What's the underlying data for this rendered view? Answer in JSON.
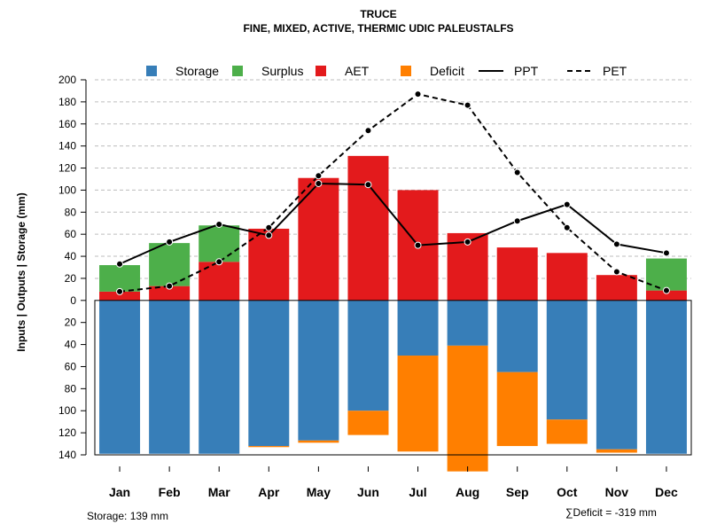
{
  "chart_data": {
    "type": "bar",
    "title": "TRUCE",
    "subtitle": "FINE, MIXED, ACTIVE, THERMIC UDIC PALEUSTALFS",
    "ylabel": "Inputs | Outputs | Storage     (mm)",
    "ylim": [
      -140,
      200
    ],
    "yticks": [
      200,
      180,
      160,
      140,
      120,
      100,
      80,
      60,
      40,
      20,
      0,
      -20,
      -40,
      -60,
      -80,
      -100,
      -120,
      -140
    ],
    "ytick_labels": [
      "200",
      "180",
      "160",
      "140",
      "120",
      "100",
      "80",
      "60",
      "40",
      "20",
      "0",
      "20",
      "40",
      "60",
      "80",
      "100",
      "120",
      "140"
    ],
    "categories": [
      "Jan",
      "Feb",
      "Mar",
      "Apr",
      "May",
      "Jun",
      "Jul",
      "Aug",
      "Sep",
      "Oct",
      "Nov",
      "Dec"
    ],
    "series": [
      {
        "name": "AET",
        "color": "#e31a1c",
        "kind": "bar-up",
        "values": [
          8,
          13,
          35,
          65,
          111,
          131,
          100,
          61,
          48,
          43,
          23,
          9
        ]
      },
      {
        "name": "Surplus",
        "color": "#4daf4a",
        "kind": "bar-up-stacked",
        "values": [
          24,
          39,
          33,
          0,
          0,
          0,
          0,
          0,
          0,
          0,
          0,
          29
        ]
      },
      {
        "name": "Storage",
        "color": "#377eb8",
        "kind": "bar-down",
        "values": [
          139,
          139,
          139,
          132,
          127,
          100,
          50,
          41,
          65,
          108,
          135,
          139
        ]
      },
      {
        "name": "Deficit",
        "color": "#ff7f00",
        "kind": "bar-down-stacked",
        "values": [
          0,
          0,
          0,
          1,
          2,
          22,
          87,
          114,
          67,
          22,
          3,
          0
        ]
      },
      {
        "name": "PPT",
        "color": "#000000",
        "kind": "line-solid",
        "values": [
          33,
          53,
          69,
          59,
          106,
          105,
          50,
          53,
          72,
          87,
          51,
          43
        ]
      },
      {
        "name": "PET",
        "color": "#000000",
        "kind": "line-dashed",
        "values": [
          8,
          13,
          35,
          66,
          113,
          154,
          187,
          177,
          116,
          66,
          26,
          9
        ]
      }
    ],
    "legend": {
      "position": "top",
      "items": [
        {
          "label": "Storage",
          "color": "#377eb8",
          "kind": "box"
        },
        {
          "label": "Surplus",
          "color": "#4daf4a",
          "kind": "box"
        },
        {
          "label": "AET",
          "color": "#e31a1c",
          "kind": "box"
        },
        {
          "label": "Deficit",
          "color": "#ff7f00",
          "kind": "box"
        },
        {
          "label": "PPT",
          "color": "#000000",
          "kind": "line-solid"
        },
        {
          "label": "PET",
          "color": "#000000",
          "kind": "line-dashed"
        }
      ]
    },
    "grid": true,
    "storage_note": "Storage: 139 mm",
    "deficit_note": "∑Deficit = -319 mm"
  }
}
